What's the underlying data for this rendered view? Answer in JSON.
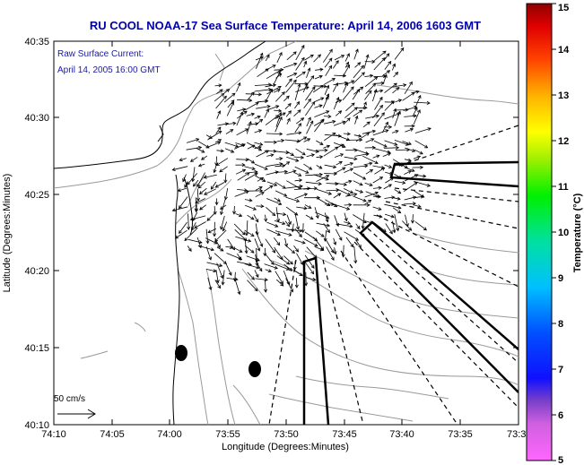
{
  "title": "RU COOL  NOAA-17  Sea Surface Temperature:  April 14, 2006 1603 GMT",
  "annotation": {
    "line1": "Raw Surface Current:",
    "line2": "April 14, 2005 16:00 GMT"
  },
  "axes": {
    "xlabel": "Longitude (Degrees:Minutes)",
    "ylabel": "Latitude (Degrees:Minutes)",
    "x_ticks": [
      "74:10",
      "74:05",
      "74:00",
      "73:55",
      "73:50",
      "73:45",
      "73:40",
      "73:35",
      "73:3"
    ],
    "y_ticks": [
      "40:10",
      "40:15",
      "40:20",
      "40:25",
      "40:30",
      "40:35"
    ]
  },
  "scale_label": "50 cm/s",
  "colorbar": {
    "label": "Temperature (°C)",
    "min": 5,
    "max": 15,
    "ticks": [
      "15",
      "14",
      "13",
      "12",
      "11",
      "10",
      "9",
      "8",
      "7",
      "6",
      "5"
    ]
  },
  "colors": {
    "title": "#0000aa",
    "annotation": "#1a1aa6",
    "land": "#ffffff",
    "contour": "#9a9a9a",
    "coast": "#000000"
  },
  "icons": {
    "scale_arrow": "right-arrow-icon"
  }
}
